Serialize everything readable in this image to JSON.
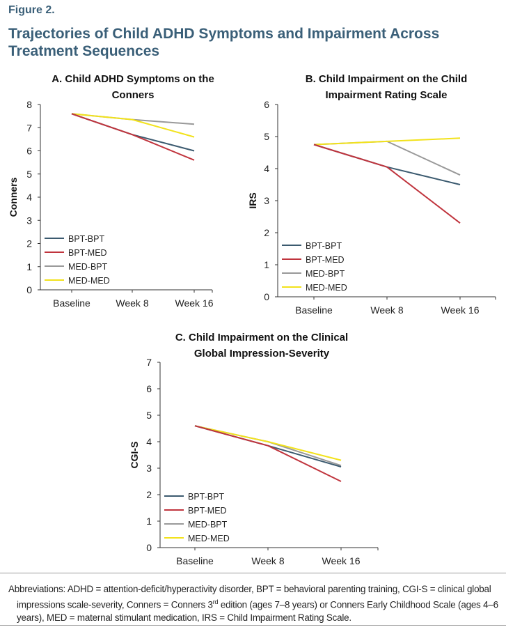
{
  "figure": {
    "label": "Figure 2.",
    "title": "Trajectories of Child ADHD Symptoms and Impairment Across Treatment Sequences",
    "abbreviations_part1": "Abbreviations: ADHD = attention-deficit/hyperactivity disorder, BPT = behavioral parenting training, CGI-S = clinical global impressions scale-severity, Conners = Conners 3",
    "abbreviations_sup": "rd",
    "abbreviations_part2": " edition (ages 7–8 years) or Conners Early Childhood Scale (ages 4–6 years), MED = maternal stimulant medication, IRS = Child Impairment Rating Scale."
  },
  "colors": {
    "BPT-BPT": "#3b5a6f",
    "BPT-MED": "#c0343d",
    "MED-BPT": "#999999",
    "MED-MED": "#f2e21b"
  },
  "chart_data": [
    {
      "type": "line",
      "title_lines": [
        "A. Child ADHD Symptoms on the",
        "Conners"
      ],
      "xlabel": "",
      "ylabel": "Conners",
      "ylim": [
        0,
        8
      ],
      "yticks": [
        "0",
        "1",
        "2",
        "3",
        "4",
        "5",
        "6",
        "7",
        "8"
      ],
      "categories": [
        "Baseline",
        "Week 8",
        "Week 16"
      ],
      "legend_position": "bottom-left",
      "series": [
        {
          "name": "BPT-BPT",
          "values": [
            7.6,
            6.7,
            6.0
          ]
        },
        {
          "name": "BPT-MED",
          "values": [
            7.6,
            6.7,
            5.6
          ]
        },
        {
          "name": "MED-BPT",
          "values": [
            7.6,
            7.35,
            7.15
          ]
        },
        {
          "name": "MED-MED",
          "values": [
            7.6,
            7.35,
            6.6
          ]
        }
      ]
    },
    {
      "type": "line",
      "title_lines": [
        "B. Child Impairment on the Child",
        "Impairment Rating Scale"
      ],
      "xlabel": "",
      "ylabel": "IRS",
      "ylim": [
        0,
        6
      ],
      "yticks": [
        "0",
        "1",
        "2",
        "3",
        "4",
        "5",
        "6"
      ],
      "categories": [
        "Baseline",
        "Week 8",
        "Week 16"
      ],
      "legend_position": "bottom-left",
      "series": [
        {
          "name": "BPT-BPT",
          "values": [
            4.75,
            4.05,
            3.5
          ]
        },
        {
          "name": "BPT-MED",
          "values": [
            4.75,
            4.05,
            2.3
          ]
        },
        {
          "name": "MED-BPT",
          "values": [
            4.75,
            4.85,
            3.8
          ]
        },
        {
          "name": "MED-MED",
          "values": [
            4.75,
            4.85,
            4.95
          ]
        }
      ]
    },
    {
      "type": "line",
      "title_lines": [
        "C. Child Impairment on the Clinical",
        "Global Impression-Severity"
      ],
      "xlabel": "",
      "ylabel": "CGI-S",
      "ylim": [
        0,
        7
      ],
      "yticks": [
        "0",
        "1",
        "2",
        "3",
        "4",
        "5",
        "6",
        "7"
      ],
      "categories": [
        "Baseline",
        "Week 8",
        "Week 16"
      ],
      "legend_position": "bottom-left",
      "series": [
        {
          "name": "BPT-BPT",
          "values": [
            4.6,
            3.85,
            3.05
          ]
        },
        {
          "name": "BPT-MED",
          "values": [
            4.6,
            3.85,
            2.5
          ]
        },
        {
          "name": "MED-BPT",
          "values": [
            4.6,
            4.0,
            3.1
          ]
        },
        {
          "name": "MED-MED",
          "values": [
            4.6,
            4.0,
            3.3
          ]
        }
      ]
    }
  ]
}
